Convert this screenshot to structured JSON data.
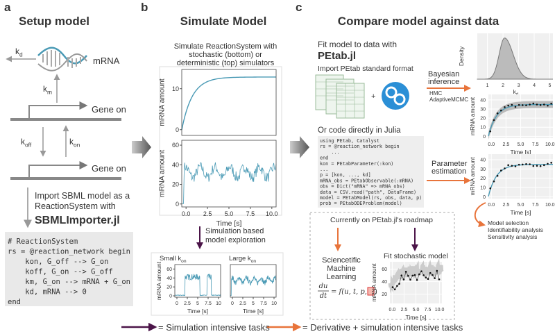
{
  "panel_a": {
    "label": "a",
    "title": "Setup model",
    "rates": {
      "kd": {
        "base": "k",
        "sub": "d"
      },
      "km": {
        "base": "k",
        "sub": "m"
      },
      "koff": {
        "base": "k",
        "sub": "off"
      },
      "kon": {
        "base": "k",
        "sub": "on"
      }
    },
    "species": "mRNA",
    "gene_top": "Gene on",
    "gene_bottom": "Gene on",
    "import_text": [
      "Import SBML model as a",
      "ReactionSystem with"
    ],
    "importer": "SBMLImporter.jl",
    "code": [
      "# ReactionSystem",
      "rs = @reaction_network begin",
      "    kon, G_off --> G_on",
      "    koff, G_on --> G_off",
      "    km, G_on --> mRNA + G_on",
      "    kd, mRNA --> 0",
      "end"
    ]
  },
  "panel_b": {
    "label": "b",
    "title": "Simulate Model",
    "description": [
      "Simulate ReactionSystem with",
      "stochastic (bottom) or",
      "deterministic (top) simulators"
    ],
    "deterministic_plot": {
      "ylabel": "mRNA amount",
      "ylim": [
        -1.4,
        14.7
      ],
      "yticks": [
        0,
        10
      ],
      "xlim": [
        -0.5,
        10.5
      ]
    },
    "stochastic_plot": {
      "ylabel": "mRNA amount",
      "xlabel": "Time [s]",
      "ylim": [
        -3,
        65
      ],
      "yticks": [
        0,
        20,
        40,
        60
      ],
      "xlim": [
        -0.5,
        10.5
      ],
      "xticks": [
        {
          "value": 0,
          "label": "0.0"
        },
        2.5,
        {
          "value": 5,
          "label": "5.0"
        },
        7.5,
        {
          "value": 10,
          "label": "10.0"
        }
      ]
    },
    "exploration": [
      "Simulation based",
      "model exploration"
    ],
    "small_kon_plot": {
      "title": {
        "base": "Small k",
        "sub": "on"
      },
      "ylabel": "mRNA amount",
      "xlabel": "Time [s]",
      "ylim": [
        -3,
        70
      ],
      "yticks": [
        0,
        20,
        40,
        60
      ],
      "xlim": [
        -0.5,
        10.5
      ],
      "xticks": [
        0,
        2.5,
        5,
        7.5,
        10
      ]
    },
    "large_kon_plot": {
      "title": {
        "base": "Large k",
        "sub": "on"
      },
      "xlabel": "Time [s]",
      "ylim": [
        -3,
        70
      ],
      "xlim": [
        -0.5,
        10.5
      ],
      "xticks": [
        0,
        2.5,
        5,
        7.5,
        10
      ]
    }
  },
  "panel_c": {
    "label": "c",
    "title": "Compare model against data",
    "fit_text": "Fit model to data with",
    "package": "PEtab.jl",
    "import_format": "Import PEtab standard format",
    "plus": "+",
    "code_intro": "Or code directly in Julia",
    "code": [
      "using PEtab, Catalyst",
      "rs = @reaction_network begin",
      "    ...",
      "end",
      "kon = PEtabParameter(:kon)",
      "...",
      "p = [kon, ..., kd]",
      "mRNA_obs = PEtabObservable(:mRNA)",
      "obs = Dict(\"mRNA\" => mRNA_obs)",
      "data = CSV.read(\"path\", DataFrame)",
      "model = PEtabModel(rs, obs, data, p)",
      "prob = PEtabODEProblem(model)"
    ],
    "bayes": [
      "Bayesian",
      "inference"
    ],
    "samplers": [
      "HMC",
      "AdaptiveMCMC"
    ],
    "posterior_plot": {
      "ylabel": "Density",
      "xlabel": {
        "base": "k",
        "sub": "d"
      },
      "xlim": [
        0.35,
        5.2
      ],
      "xticks": [
        1,
        2,
        3,
        4,
        5
      ]
    },
    "bayes_fit_plot": {
      "ylabel": "mRNA amount",
      "xlabel": "Time [s]",
      "ylim": [
        -2,
        46
      ],
      "yticks": [
        0,
        10,
        20,
        30,
        40
      ],
      "xlim": [
        -0.5,
        10.5
      ],
      "xticks": [
        {
          "value": 0,
          "label": "0.0"
        },
        2.5,
        {
          "value": 5,
          "label": "5.0"
        },
        7.5,
        {
          "value": 10,
          "label": "10.0"
        }
      ]
    },
    "param_est": [
      "Parameter",
      "estimation"
    ],
    "pe_fit_plot": {
      "ylabel": "mRNA amount",
      "xlabel": "Time [s]",
      "ylim": [
        -2,
        46
      ],
      "yticks": [
        0,
        10,
        20,
        30,
        40
      ],
      "xlim": [
        -0.5,
        10.5
      ],
      "xticks": [
        {
          "value": 0,
          "label": "0.0"
        },
        2.5,
        {
          "value": 5,
          "label": "5.0"
        },
        7.5,
        {
          "value": 10,
          "label": "10.0"
        }
      ]
    },
    "downstream": [
      "Model selection",
      "Identifiability analysis",
      "Sensitivity analysis"
    ],
    "roadmap": {
      "title": "Currently on PEtab.jl's roadmap",
      "sciml": [
        "Sciencetific",
        "Machine",
        "Learning"
      ],
      "equation": {
        "numerator": "du",
        "denominator": "dt",
        "rhs": "= f(u, t, p, ",
        "close": ")"
      },
      "stochastic_title": "Fit stochastic model"
    },
    "stochastic_fit_plot": {
      "ylabel": "mRNA amount",
      "xlabel": "Time [s]",
      "ylim": [
        5,
        72
      ],
      "yticks": [
        20,
        40,
        60
      ],
      "xlim": [
        -0.5,
        10.5
      ],
      "xticks": [
        {
          "value": 0,
          "label": "0.0"
        },
        2.5,
        {
          "value": 5,
          "label": "5.0"
        },
        7.5,
        {
          "value": 10,
          "label": "10.0"
        }
      ]
    }
  },
  "legend": {
    "simulation": "= Simulation intensive tasks",
    "derivative": "= Derivative + simulation intensive tasks"
  }
}
